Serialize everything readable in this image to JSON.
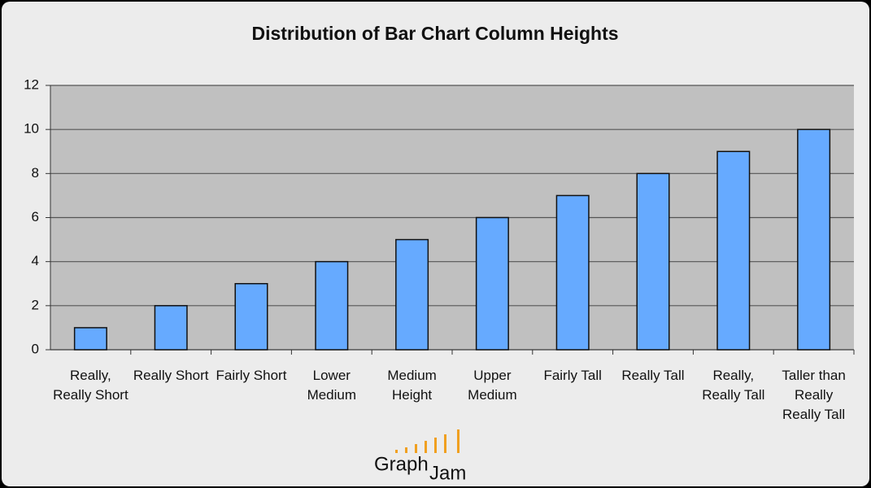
{
  "chart_data": {
    "type": "bar",
    "title": "Distribution of Bar Chart Column Heights",
    "categories": [
      "Really, Really Short",
      "Really Short",
      "Fairly Short",
      "Lower Medium",
      "Medium Height",
      "Upper Medium",
      "Fairly Tall",
      "Really Tall",
      "Really, Really Tall",
      "Taller than Really Really Tall"
    ],
    "values": [
      1,
      2,
      3,
      4,
      5,
      6,
      7,
      8,
      9,
      10
    ],
    "color": "#66aaff",
    "ylim": [
      0,
      12
    ],
    "yticks": [
      0,
      2,
      4,
      6,
      8,
      10,
      12
    ],
    "grid": true
  },
  "logo": [
    "Graph",
    "Jam"
  ]
}
